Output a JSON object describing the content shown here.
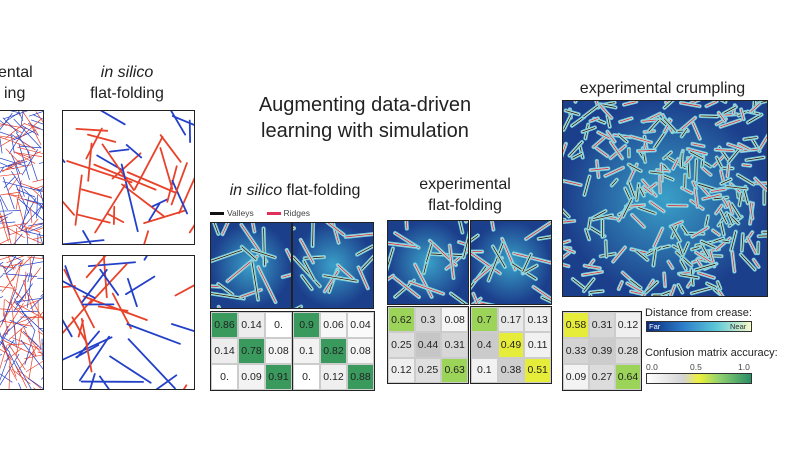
{
  "headings": {
    "left_partial_1": "ental",
    "left_partial_2": "ing",
    "in_silico_top_italic": "in silico",
    "in_silico_top_rest": "flat-folding",
    "center_title_line1": "Augmenting data-driven",
    "center_title_line2": "learning with simulation",
    "insilico_mid_italic": "in silico",
    "insilico_mid_rest": "flat-folding",
    "experimental_line1": "experimental",
    "experimental_line2": "flat-folding",
    "crumpling": "experimental crumpling"
  },
  "legend_valleys_ridges": {
    "valleys": "Valleys",
    "ridges": "Ridges",
    "valley_color": "#111111",
    "ridge_color": "#e0305a"
  },
  "distance_legend": {
    "title": "Distance from crease:",
    "far": "Far",
    "near": "Near"
  },
  "accuracy_legend": {
    "title": "Confusion matrix accuracy:",
    "ticks": [
      "0.0",
      "0.5",
      "1.0"
    ]
  },
  "matrices": [
    {
      "id": "insilico-a",
      "values": [
        "0.86",
        "0.14",
        "0.",
        "0.14",
        "0.78",
        "0.08",
        "0.",
        "0.09",
        "0.91"
      ],
      "levels": [
        0.86,
        0.14,
        0,
        0.14,
        0.78,
        0.08,
        0,
        0.09,
        0.91
      ]
    },
    {
      "id": "insilico-b",
      "values": [
        "0.9",
        "0.06",
        "0.04",
        "0.1",
        "0.82",
        "0.08",
        "0.",
        "0.12",
        "0.88"
      ],
      "levels": [
        0.9,
        0.06,
        0.04,
        0.1,
        0.82,
        0.08,
        0,
        0.12,
        0.88
      ]
    },
    {
      "id": "experimental-a",
      "values": [
        "0.62",
        "0.3",
        "0.08",
        "0.25",
        "0.44",
        "0.31",
        "0.12",
        "0.25",
        "0.63"
      ],
      "levels": [
        0.62,
        0.3,
        0.08,
        0.25,
        0.44,
        0.31,
        0.12,
        0.25,
        0.63
      ]
    },
    {
      "id": "experimental-b",
      "values": [
        "0.7",
        "0.17",
        "0.13",
        "0.4",
        "0.49",
        "0.11",
        "0.1",
        "0.38",
        "0.51"
      ],
      "levels": [
        0.7,
        0.17,
        0.13,
        0.4,
        0.49,
        0.11,
        0.1,
        0.38,
        0.51
      ]
    },
    {
      "id": "crumpling",
      "values": [
        "0.58",
        "0.31",
        "0.12",
        "0.33",
        "0.39",
        "0.28",
        "0.09",
        "0.27",
        "0.64"
      ],
      "levels": [
        0.58,
        0.31,
        0.12,
        0.33,
        0.39,
        0.28,
        0.09,
        0.27,
        0.64
      ]
    }
  ],
  "colors": {
    "valley_blue": "#2340c8",
    "ridge_red": "#e8422a",
    "field_dark": "#1c3f8c",
    "field_mid": "#3aa0c8",
    "field_light": "#f4f8d0"
  }
}
